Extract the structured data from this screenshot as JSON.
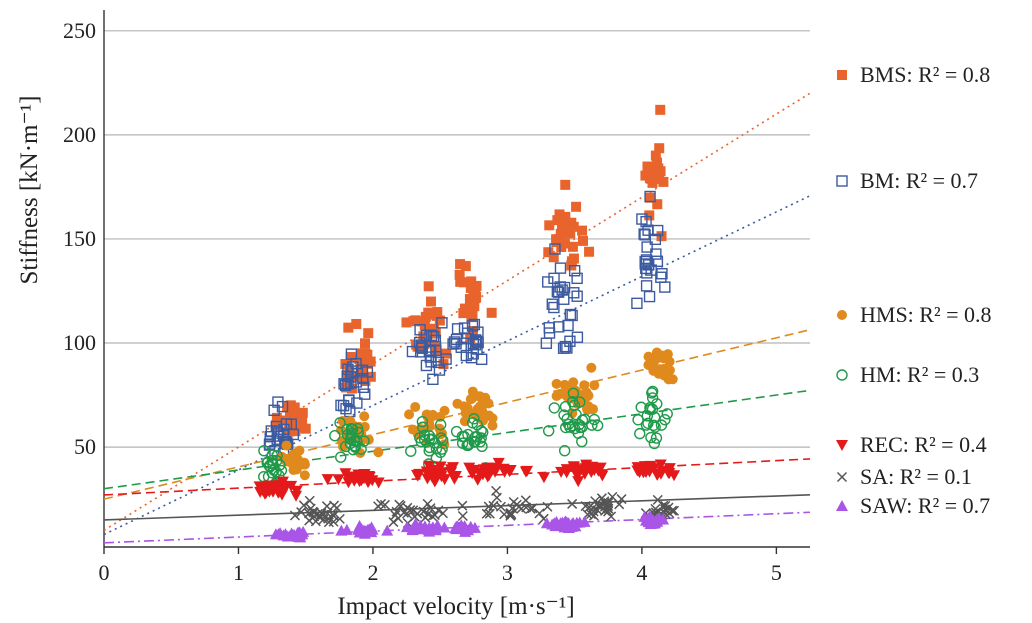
{
  "chart_data": {
    "type": "scatter",
    "title": "",
    "xlabel": "Impact velocity [m·s⁻¹]",
    "ylabel": "Stiffness [kN·m⁻¹]",
    "xlim": [
      0,
      5.25
    ],
    "ylim": [
      2,
      260
    ],
    "x_ticks": [
      "0",
      "1",
      "2",
      "3",
      "4",
      "5"
    ],
    "y_ticks": [
      "50",
      "100",
      "150",
      "200",
      "250"
    ],
    "grid": "horizontal",
    "legend_position": "right",
    "series": [
      {
        "name": "BMS",
        "legend_label": "BMS: R² = 0.8",
        "marker": "filled-square",
        "color": "#E8642C",
        "trendline": {
          "intercept": 10,
          "slope": 40,
          "style": "dotted"
        },
        "clusters": [
          {
            "x": 1.4,
            "y": 62,
            "xsd": 0.1,
            "ysd": 8,
            "n": 22
          },
          {
            "x": 1.9,
            "y": 92,
            "xsd": 0.12,
            "ysd": 12,
            "n": 24
          },
          {
            "x": 2.4,
            "y": 108,
            "xsd": 0.12,
            "ysd": 13,
            "n": 26
          },
          {
            "x": 2.72,
            "y": 122,
            "xsd": 0.1,
            "ysd": 13,
            "n": 24
          },
          {
            "x": 3.45,
            "y": 150,
            "xsd": 0.13,
            "ysd": 16,
            "n": 26
          },
          {
            "x": 4.1,
            "y": 182,
            "xsd": 0.06,
            "ysd": 24,
            "n": 22
          }
        ]
      },
      {
        "name": "BM",
        "legend_label": "BM: R² = 0.7",
        "marker": "open-square",
        "color": "#3C5AA0",
        "trendline": {
          "intercept": 8,
          "slope": 31,
          "style": "dotted"
        },
        "clusters": [
          {
            "x": 1.3,
            "y": 58,
            "xsd": 0.1,
            "ysd": 10,
            "n": 24
          },
          {
            "x": 1.85,
            "y": 78,
            "xsd": 0.12,
            "ysd": 11,
            "n": 24
          },
          {
            "x": 2.4,
            "y": 94,
            "xsd": 0.12,
            "ysd": 11,
            "n": 24
          },
          {
            "x": 2.7,
            "y": 100,
            "xsd": 0.1,
            "ysd": 12,
            "n": 22
          },
          {
            "x": 3.4,
            "y": 122,
            "xsd": 0.15,
            "ysd": 22,
            "n": 28
          },
          {
            "x": 4.05,
            "y": 142,
            "xsd": 0.08,
            "ysd": 20,
            "n": 24
          }
        ]
      },
      {
        "name": "HMS",
        "legend_label": "HMS: R² = 0.8",
        "marker": "filled-circle",
        "color": "#E08A1E",
        "trendline": {
          "intercept": 25,
          "slope": 15.5,
          "style": "dashed"
        },
        "clusters": [
          {
            "x": 1.4,
            "y": 44,
            "xsd": 0.1,
            "ysd": 5,
            "n": 20
          },
          {
            "x": 1.9,
            "y": 56,
            "xsd": 0.12,
            "ysd": 7,
            "n": 22
          },
          {
            "x": 2.4,
            "y": 62,
            "xsd": 0.12,
            "ysd": 8,
            "n": 22
          },
          {
            "x": 2.78,
            "y": 70,
            "xsd": 0.12,
            "ysd": 7,
            "n": 24
          },
          {
            "x": 3.5,
            "y": 76,
            "xsd": 0.15,
            "ysd": 8,
            "n": 26
          },
          {
            "x": 4.15,
            "y": 88,
            "xsd": 0.1,
            "ysd": 7,
            "n": 22
          }
        ]
      },
      {
        "name": "HM",
        "legend_label": "HM: R² = 0.3",
        "marker": "open-circle",
        "color": "#1F9A4A",
        "trendline": {
          "intercept": 30,
          "slope": 9,
          "style": "dashed"
        },
        "clusters": [
          {
            "x": 1.25,
            "y": 40,
            "xsd": 0.1,
            "ysd": 6,
            "n": 22
          },
          {
            "x": 1.85,
            "y": 55,
            "xsd": 0.1,
            "ysd": 8,
            "n": 22
          },
          {
            "x": 2.4,
            "y": 52,
            "xsd": 0.12,
            "ysd": 8,
            "n": 22
          },
          {
            "x": 2.75,
            "y": 55,
            "xsd": 0.1,
            "ysd": 8,
            "n": 22
          },
          {
            "x": 3.5,
            "y": 62,
            "xsd": 0.15,
            "ysd": 10,
            "n": 26
          },
          {
            "x": 4.1,
            "y": 65,
            "xsd": 0.08,
            "ysd": 10,
            "n": 22
          }
        ]
      },
      {
        "name": "REC",
        "legend_label": "REC: R² = 0.4",
        "marker": "filled-triangle-down",
        "color": "#E41A1A",
        "trendline": {
          "intercept": 27,
          "slope": 3.3,
          "style": "dashed"
        },
        "clusters": [
          {
            "x": 1.3,
            "y": 30,
            "xsd": 0.12,
            "ysd": 3,
            "n": 26
          },
          {
            "x": 1.9,
            "y": 35,
            "xsd": 0.15,
            "ysd": 3,
            "n": 26
          },
          {
            "x": 2.45,
            "y": 36,
            "xsd": 0.15,
            "ysd": 3,
            "n": 26
          },
          {
            "x": 2.9,
            "y": 38,
            "xsd": 0.2,
            "ysd": 3,
            "n": 28
          },
          {
            "x": 3.55,
            "y": 39,
            "xsd": 0.18,
            "ysd": 3,
            "n": 28
          },
          {
            "x": 4.1,
            "y": 39,
            "xsd": 0.1,
            "ysd": 3,
            "n": 22
          }
        ]
      },
      {
        "name": "SA",
        "legend_label": "SA: R² = 0.1",
        "marker": "cross",
        "color": "#555555",
        "trendline": {
          "intercept": 15,
          "slope": 2.3,
          "style": "solid"
        },
        "clusters": [
          {
            "x": 1.6,
            "y": 18,
            "xsd": 0.2,
            "ysd": 5,
            "n": 26
          },
          {
            "x": 2.3,
            "y": 19,
            "xsd": 0.2,
            "ysd": 5,
            "n": 26
          },
          {
            "x": 3.0,
            "y": 20,
            "xsd": 0.25,
            "ysd": 5,
            "n": 28
          },
          {
            "x": 3.7,
            "y": 21,
            "xsd": 0.2,
            "ysd": 5,
            "n": 26
          },
          {
            "x": 4.15,
            "y": 21,
            "xsd": 0.1,
            "ysd": 5,
            "n": 18
          }
        ]
      },
      {
        "name": "SAW",
        "legend_label": "SAW: R² = 0.7",
        "marker": "filled-triangle-up",
        "color": "#A855E8",
        "trendline": {
          "intercept": 4,
          "slope": 2.8,
          "style": "dash-dot"
        },
        "clusters": [
          {
            "x": 1.4,
            "y": 8,
            "xsd": 0.1,
            "ysd": 1.3,
            "n": 24
          },
          {
            "x": 1.95,
            "y": 10,
            "xsd": 0.12,
            "ysd": 1.4,
            "n": 22
          },
          {
            "x": 2.4,
            "y": 11,
            "xsd": 0.12,
            "ysd": 1.4,
            "n": 22
          },
          {
            "x": 2.68,
            "y": 11,
            "xsd": 0.1,
            "ysd": 1.4,
            "n": 18
          },
          {
            "x": 3.45,
            "y": 13,
            "xsd": 0.15,
            "ysd": 1.6,
            "n": 26
          },
          {
            "x": 4.08,
            "y": 15,
            "xsd": 0.06,
            "ysd": 2,
            "n": 22
          }
        ]
      }
    ]
  }
}
